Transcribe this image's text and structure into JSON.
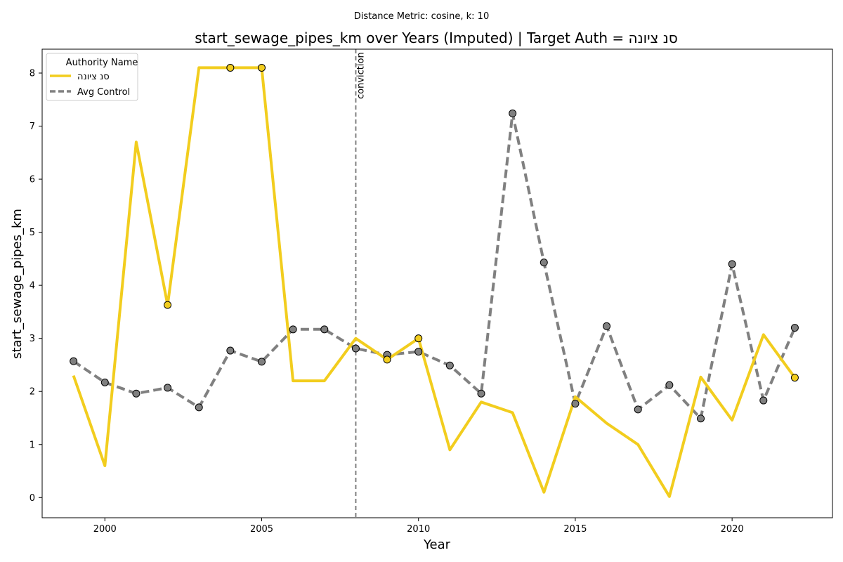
{
  "chart_data": {
    "type": "line",
    "suptitle": "Distance Metric: cosine, k: 10",
    "title": "start_sewage_pipes_km over Years (Imputed) | Target Auth = סנ ציונה",
    "xlabel": "Year",
    "ylabel": "start_sewage_pipes_km",
    "xlim": [
      1998,
      2023.2
    ],
    "ylim": [
      -0.38,
      8.45
    ],
    "xticks": [
      2000,
      2005,
      2010,
      2015,
      2020
    ],
    "yticks": [
      0,
      1,
      2,
      3,
      4,
      5,
      6,
      7,
      8
    ],
    "x": [
      1999,
      2000,
      2001,
      2002,
      2003,
      2004,
      2005,
      2006,
      2007,
      2008,
      2009,
      2010,
      2011,
      2012,
      2013,
      2014,
      2015,
      2016,
      2017,
      2018,
      2019,
      2020,
      2021,
      2022
    ],
    "legend_title": "Authority Name",
    "legend_position": "top-left",
    "grid": false,
    "series": [
      {
        "name": "סנ ציונה",
        "color": "#f2cd1e",
        "style": "solid",
        "values": [
          2.3,
          0.6,
          6.7,
          3.63,
          8.1,
          8.1,
          8.1,
          2.2,
          2.2,
          3.0,
          2.6,
          3.0,
          0.9,
          1.8,
          1.6,
          0.1,
          1.9,
          1.4,
          1.0,
          0.02,
          2.27,
          1.46,
          3.07,
          2.26
        ],
        "markers": [
          2002,
          2004,
          2005,
          2009,
          2010,
          2022
        ]
      },
      {
        "name": "Avg Control",
        "color": "#808080",
        "style": "dashed",
        "values": [
          2.57,
          2.17,
          1.96,
          2.07,
          1.7,
          2.77,
          2.56,
          3.17,
          3.17,
          2.81,
          2.69,
          2.75,
          2.49,
          1.96,
          7.24,
          4.43,
          1.77,
          3.23,
          1.66,
          2.12,
          1.49,
          4.4,
          1.83,
          3.2
        ],
        "markers": [
          1999,
          2000,
          2001,
          2002,
          2003,
          2004,
          2005,
          2006,
          2007,
          2008,
          2009,
          2010,
          2011,
          2012,
          2013,
          2014,
          2015,
          2016,
          2017,
          2018,
          2019,
          2020,
          2021,
          2022
        ]
      }
    ],
    "vline": {
      "x": 2008,
      "label": "conviction",
      "color": "#808080"
    }
  }
}
